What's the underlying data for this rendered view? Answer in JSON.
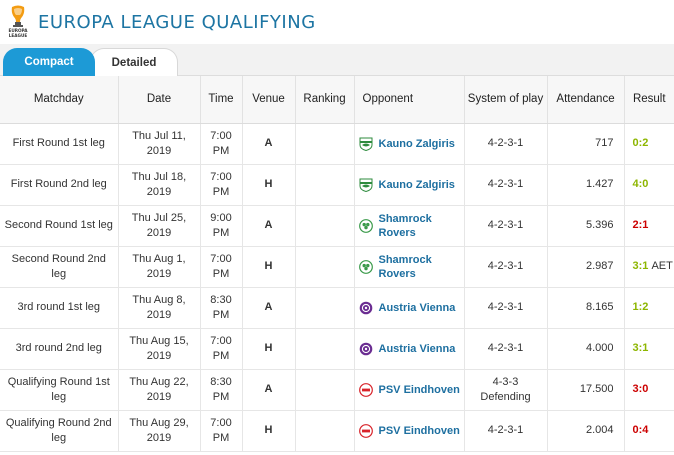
{
  "header": {
    "title": "Europa League Qualifying",
    "logo_icon": "europa-league-trophy-icon"
  },
  "tabs": [
    {
      "label": "Compact",
      "active": true
    },
    {
      "label": "Detailed",
      "active": false
    }
  ],
  "table": {
    "columns": [
      "Matchday",
      "Date",
      "Time",
      "Venue",
      "Ranking",
      "Opponent",
      "System of play",
      "Attendance",
      "Result"
    ],
    "rows": [
      {
        "matchday": "First Round 1st leg",
        "date": "Thu Jul 11, 2019",
        "time": "7:00 PM",
        "venue": "A",
        "ranking": "",
        "opponent": "Kauno Zalgiris",
        "crest": "kauno-zalgiris-crest-icon",
        "system": "4-2-3-1",
        "attendance": "717",
        "result": "0:2",
        "result_suffix": "",
        "result_color": "#8db600"
      },
      {
        "matchday": "First Round 2nd leg",
        "date": "Thu Jul 18, 2019",
        "time": "7:00 PM",
        "venue": "H",
        "ranking": "",
        "opponent": "Kauno Zalgiris",
        "crest": "kauno-zalgiris-crest-icon",
        "system": "4-2-3-1",
        "attendance": "1.427",
        "result": "4:0",
        "result_suffix": "",
        "result_color": "#8db600"
      },
      {
        "matchday": "Second Round 1st leg",
        "date": "Thu Jul 25, 2019",
        "time": "9:00 PM",
        "venue": "A",
        "ranking": "",
        "opponent": "Shamrock Rovers",
        "crest": "shamrock-rovers-crest-icon",
        "system": "4-2-3-1",
        "attendance": "5.396",
        "result": "2:1",
        "result_suffix": "",
        "result_color": "#cc0000"
      },
      {
        "matchday": "Second Round 2nd leg",
        "date": "Thu Aug 1, 2019",
        "time": "7:00 PM",
        "venue": "H",
        "ranking": "",
        "opponent": "Shamrock Rovers",
        "crest": "shamrock-rovers-crest-icon",
        "system": "4-2-3-1",
        "attendance": "2.987",
        "result": "3:1",
        "result_suffix": "AET",
        "result_color": "#8db600"
      },
      {
        "matchday": "3rd round 1st leg",
        "date": "Thu Aug 8, 2019",
        "time": "8:30 PM",
        "venue": "A",
        "ranking": "",
        "opponent": "Austria Vienna",
        "crest": "austria-vienna-crest-icon",
        "system": "4-2-3-1",
        "attendance": "8.165",
        "result": "1:2",
        "result_suffix": "",
        "result_color": "#8db600"
      },
      {
        "matchday": "3rd round 2nd leg",
        "date": "Thu Aug 15, 2019",
        "time": "7:00 PM",
        "venue": "H",
        "ranking": "",
        "opponent": "Austria Vienna",
        "crest": "austria-vienna-crest-icon",
        "system": "4-2-3-1",
        "attendance": "4.000",
        "result": "3:1",
        "result_suffix": "",
        "result_color": "#8db600"
      },
      {
        "matchday": "Qualifying Round 1st leg",
        "date": "Thu Aug 22, 2019",
        "time": "8:30 PM",
        "venue": "A",
        "ranking": "",
        "opponent": "PSV Eindhoven",
        "crest": "psv-eindhoven-crest-icon",
        "system": "4-3-3 Defending",
        "attendance": "17.500",
        "result": "3:0",
        "result_suffix": "",
        "result_color": "#cc0000"
      },
      {
        "matchday": "Qualifying Round 2nd leg",
        "date": "Thu Aug 29, 2019",
        "time": "7:00 PM",
        "venue": "H",
        "ranking": "",
        "opponent": "PSV Eindhoven",
        "crest": "psv-eindhoven-crest-icon",
        "system": "4-2-3-1",
        "attendance": "2.004",
        "result": "0:4",
        "result_suffix": "",
        "result_color": "#cc0000"
      }
    ]
  }
}
